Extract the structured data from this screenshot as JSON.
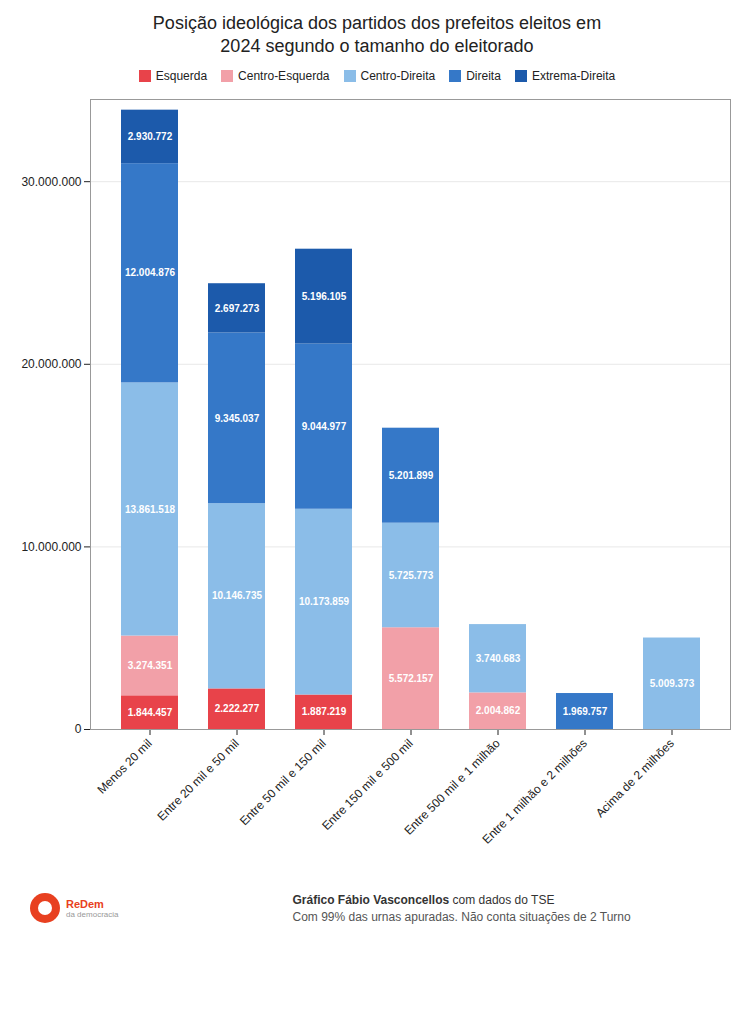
{
  "chart_data": {
    "type": "bar",
    "title": "Posição ideológica dos partidos dos prefeitos eleitos em\n2024 segundo o tamanho do eleitorado",
    "categories": [
      "Menos 20 mil",
      "Entre 20 mil e 50 mil",
      "Entre 50 mil e 150 mil",
      "Entre 150 mil e 500 mil",
      "Entre 500 mil e 1 milhão",
      "Entre 1 milhão e 2 milhões",
      "Acima de 2 milhões"
    ],
    "series": [
      {
        "name": "Esquerda",
        "color": "#e8434a",
        "values": [
          1844457,
          2222277,
          1887219,
          0,
          0,
          0,
          0
        ],
        "value_labels": [
          "1.844.457",
          "2.222.277",
          "1.887.219",
          null,
          null,
          null,
          null
        ]
      },
      {
        "name": "Centro-Esquerda",
        "color": "#f2a0a8",
        "values": [
          3274351,
          0,
          0,
          5572157,
          2004862,
          0,
          0
        ],
        "value_labels": [
          "3.274.351",
          null,
          null,
          "5.572.157",
          "2.004.862",
          null,
          null
        ]
      },
      {
        "name": "Centro-Direita",
        "color": "#8bbde8",
        "values": [
          13861518,
          10146735,
          10173859,
          5725773,
          3740683,
          0,
          5009373
        ],
        "value_labels": [
          "13.861.518",
          "10.146.735",
          "10.173.859",
          "5.725.773",
          "3.740.683",
          null,
          "5.009.373"
        ]
      },
      {
        "name": "Direita",
        "color": "#3578c8",
        "values": [
          12004876,
          9345037,
          9044977,
          5201899,
          0,
          1969757,
          0
        ],
        "value_labels": [
          "12.004.876",
          "9.345.037",
          "9.044.977",
          "5.201.899",
          null,
          "1.969.757",
          null
        ]
      },
      {
        "name": "Extrema-Direita",
        "color": "#1c5aab",
        "values": [
          2930772,
          2697273,
          5196105,
          0,
          0,
          0,
          0
        ],
        "value_labels": [
          "2.930.772",
          "2.697.273",
          "5.196.105",
          null,
          null,
          null,
          null
        ]
      }
    ],
    "stacked": true,
    "data_labels": true,
    "ylim": [
      0,
      34500000
    ],
    "yticks": [
      0,
      {
        "value": 10000000,
        "label": "10.000.000"
      },
      {
        "value": 20000000,
        "label": "20.000.000"
      },
      {
        "value": 30000000,
        "label": "30.000.000"
      }
    ],
    "grid": true,
    "legend": "top",
    "annotations": [
      "Gráfico Fábio Vasconcellos",
      " com dados do TSE",
      "Com 99% das urnas apuradas. Não conta situações de 2 Turno",
      "ReDem",
      "da democracia"
    ]
  }
}
